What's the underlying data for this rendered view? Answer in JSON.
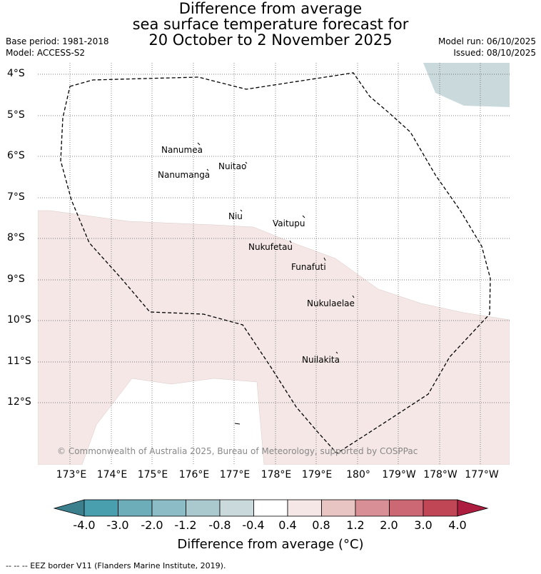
{
  "title": {
    "line1": "Difference from average",
    "line2": "sea surface temperature forecast for",
    "line3": "20 October to 2 November 2025"
  },
  "meta_left": {
    "base_period": "Base period: 1981-2018",
    "model": "Model: ACCESS-S2"
  },
  "meta_right": {
    "model_run": "Model run: 06/10/2025",
    "issued": "Issued: 08/10/2025"
  },
  "map": {
    "lat_labels": [
      "4°S",
      "5°S",
      "6°S",
      "7°S",
      "8°S",
      "9°S",
      "10°S",
      "11°S",
      "12°S"
    ],
    "lon_labels": [
      "173°E",
      "174°E",
      "175°E",
      "176°E",
      "177°E",
      "178°E",
      "179°E",
      "180°",
      "179°W",
      "178°W",
      "177°W"
    ],
    "places": [
      "Nanumea",
      "Nuitao",
      "Nanumanga",
      "Niu",
      "Vaitupu",
      "Nukufetau",
      "Funafuti",
      "Nukulaelae",
      "Nuilakita"
    ],
    "copyright": "© Commonwealth of Australia 2025, Bureau of Meteorology, supported by COSPPac",
    "colors": {
      "anomaly_minus_0_8_to_minus_0_4": "#cad9dc",
      "anomaly_0_4_to_0_8": "#f4e7e6",
      "eez_border": "#000000"
    }
  },
  "colorbar": {
    "labels": [
      "-4.0",
      "-3.0",
      "-2.0",
      "-1.2",
      "-0.8",
      "-0.4",
      "0.4",
      "0.8",
      "1.2",
      "2.0",
      "3.0",
      "4.0"
    ],
    "colors": [
      "#3c7f8d",
      "#4a9fae",
      "#6dacb9",
      "#8cbcc6",
      "#a9c9ce",
      "#cad9dc",
      "#ffffff",
      "#f4e7e6",
      "#e8c5c2",
      "#d98f96",
      "#cc6774",
      "#c04656",
      "#ad1d3f"
    ],
    "title": "Difference from average (°C)"
  },
  "footnote": "-- -- -- EEZ border V11 (Flanders Marine Institute, 2019)."
}
